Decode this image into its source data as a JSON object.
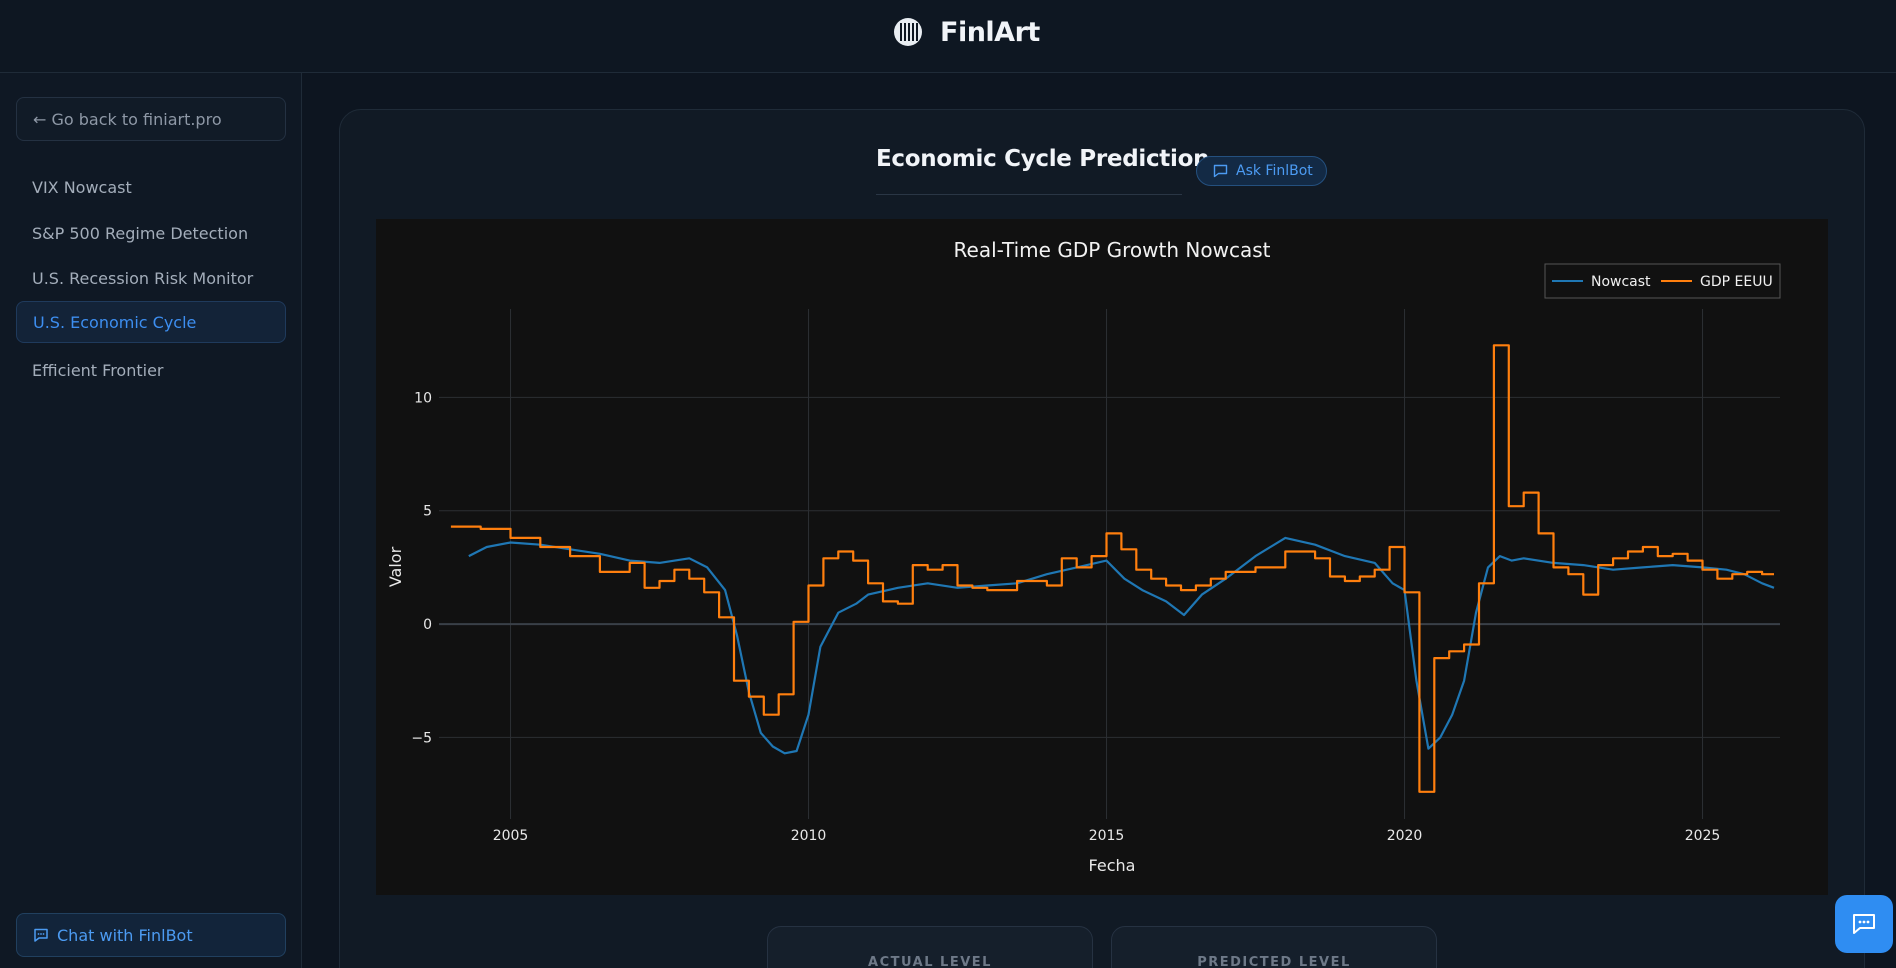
{
  "app": {
    "name": "FinlArt"
  },
  "sidebar": {
    "back_label": "← Go back to finiart.pro",
    "items": [
      {
        "label": "VIX Nowcast",
        "active": false
      },
      {
        "label": "S&P 500 Regime Detection",
        "active": false
      },
      {
        "label": "U.S. Recession Risk Monitor",
        "active": false
      },
      {
        "label": "U.S. Economic Cycle",
        "active": true
      },
      {
        "label": "Efficient Frontier",
        "active": false
      }
    ],
    "chat_label": "Chat with FinlBot"
  },
  "main": {
    "title": "Economic Cycle Prediction",
    "ask_label": "Ask FinlBot",
    "stats": [
      {
        "label": "ACTUAL LEVEL"
      },
      {
        "label": "PREDICTED LEVEL"
      }
    ]
  },
  "icons": {
    "back": "arrow-left-icon",
    "chat": "chat-bubble-icon",
    "logo": "finlart-logo-icon"
  },
  "colors": {
    "accent": "#3d8ef0",
    "nowcast": "#1f77b4",
    "gdp": "#ff7f0e",
    "background": "#0d1520"
  },
  "chart_data": {
    "type": "line",
    "title": "Real-Time GDP Growth Nowcast",
    "xlabel": "Fecha",
    "ylabel": "Valor",
    "xlim": [
      2003.8,
      2026.3
    ],
    "ylim": [
      -8.6,
      13.9
    ],
    "xticks": [
      2005,
      2010,
      2015,
      2020,
      2025
    ],
    "yticks": [
      -5,
      0,
      5,
      10
    ],
    "grid": true,
    "legend_position": "top-right",
    "series": [
      {
        "name": "Nowcast",
        "color": "#1f77b4",
        "style": "line",
        "x": [
          2004.3,
          2004.6,
          2005.0,
          2005.5,
          2006.0,
          2006.5,
          2007.0,
          2007.5,
          2008.0,
          2008.3,
          2008.6,
          2008.8,
          2009.0,
          2009.2,
          2009.4,
          2009.6,
          2009.8,
          2010.0,
          2010.2,
          2010.5,
          2010.8,
          2011.0,
          2011.5,
          2012.0,
          2012.5,
          2013.0,
          2013.5,
          2014.0,
          2014.5,
          2015.0,
          2015.3,
          2015.6,
          2016.0,
          2016.3,
          2016.6,
          2017.0,
          2017.5,
          2018.0,
          2018.5,
          2019.0,
          2019.5,
          2019.8,
          2020.0,
          2020.2,
          2020.4,
          2020.6,
          2020.8,
          2021.0,
          2021.2,
          2021.4,
          2021.6,
          2021.8,
          2022.0,
          2022.5,
          2023.0,
          2023.5,
          2024.0,
          2024.5,
          2025.0,
          2025.4,
          2025.7,
          2026.0,
          2026.2
        ],
        "y": [
          3.0,
          3.4,
          3.6,
          3.5,
          3.3,
          3.1,
          2.8,
          2.7,
          2.9,
          2.5,
          1.5,
          -0.5,
          -3.0,
          -4.8,
          -5.4,
          -5.7,
          -5.6,
          -4.0,
          -1.0,
          0.5,
          0.9,
          1.3,
          1.6,
          1.8,
          1.6,
          1.7,
          1.8,
          2.2,
          2.5,
          2.8,
          2.0,
          1.5,
          1.0,
          0.4,
          1.3,
          2.0,
          3.0,
          3.8,
          3.5,
          3.0,
          2.7,
          1.8,
          1.5,
          -2.5,
          -5.5,
          -5.0,
          -4.0,
          -2.5,
          0.5,
          2.5,
          3.0,
          2.8,
          2.9,
          2.7,
          2.6,
          2.4,
          2.5,
          2.6,
          2.5,
          2.4,
          2.2,
          1.8,
          1.6
        ]
      },
      {
        "name": "GDP EEUU",
        "color": "#ff7f0e",
        "style": "step",
        "x": [
          2004.0,
          2004.5,
          2005.0,
          2005.5,
          2006.0,
          2006.5,
          2007.0,
          2007.25,
          2007.5,
          2007.75,
          2008.0,
          2008.25,
          2008.5,
          2008.75,
          2009.0,
          2009.25,
          2009.5,
          2009.75,
          2010.0,
          2010.25,
          2010.5,
          2010.75,
          2011.0,
          2011.25,
          2011.5,
          2011.75,
          2012.0,
          2012.25,
          2012.5,
          2012.75,
          2013.0,
          2013.5,
          2014.0,
          2014.25,
          2014.5,
          2014.75,
          2015.0,
          2015.25,
          2015.5,
          2015.75,
          2016.0,
          2016.25,
          2016.5,
          2016.75,
          2017.0,
          2017.5,
          2018.0,
          2018.5,
          2018.75,
          2019.0,
          2019.25,
          2019.5,
          2019.75,
          2020.0,
          2020.25,
          2020.5,
          2020.75,
          2021.0,
          2021.25,
          2021.5,
          2021.75,
          2022.0,
          2022.25,
          2022.5,
          2022.75,
          2023.0,
          2023.25,
          2023.5,
          2023.75,
          2024.0,
          2024.25,
          2024.5,
          2024.75,
          2025.0,
          2025.25,
          2025.5,
          2025.75,
          2026.0,
          2026.2
        ],
        "y": [
          4.3,
          4.2,
          3.8,
          3.4,
          3.0,
          2.3,
          2.7,
          1.6,
          1.9,
          2.4,
          2.0,
          1.4,
          0.3,
          -2.5,
          -3.2,
          -4.0,
          -3.1,
          0.1,
          1.7,
          2.9,
          3.2,
          2.8,
          1.8,
          1.0,
          0.9,
          2.6,
          2.4,
          2.6,
          1.7,
          1.6,
          1.5,
          1.9,
          1.7,
          2.9,
          2.5,
          3.0,
          4.0,
          3.3,
          2.4,
          2.0,
          1.7,
          1.5,
          1.7,
          2.0,
          2.3,
          2.5,
          3.2,
          2.9,
          2.1,
          1.9,
          2.1,
          2.4,
          3.4,
          1.4,
          -7.4,
          -1.5,
          -1.2,
          -0.9,
          1.8,
          12.3,
          5.2,
          5.8,
          4.0,
          2.5,
          2.2,
          1.3,
          2.6,
          2.9,
          3.2,
          3.4,
          3.0,
          3.1,
          2.8,
          2.4,
          2.0,
          2.2,
          2.3,
          2.2,
          2.2
        ]
      }
    ]
  }
}
